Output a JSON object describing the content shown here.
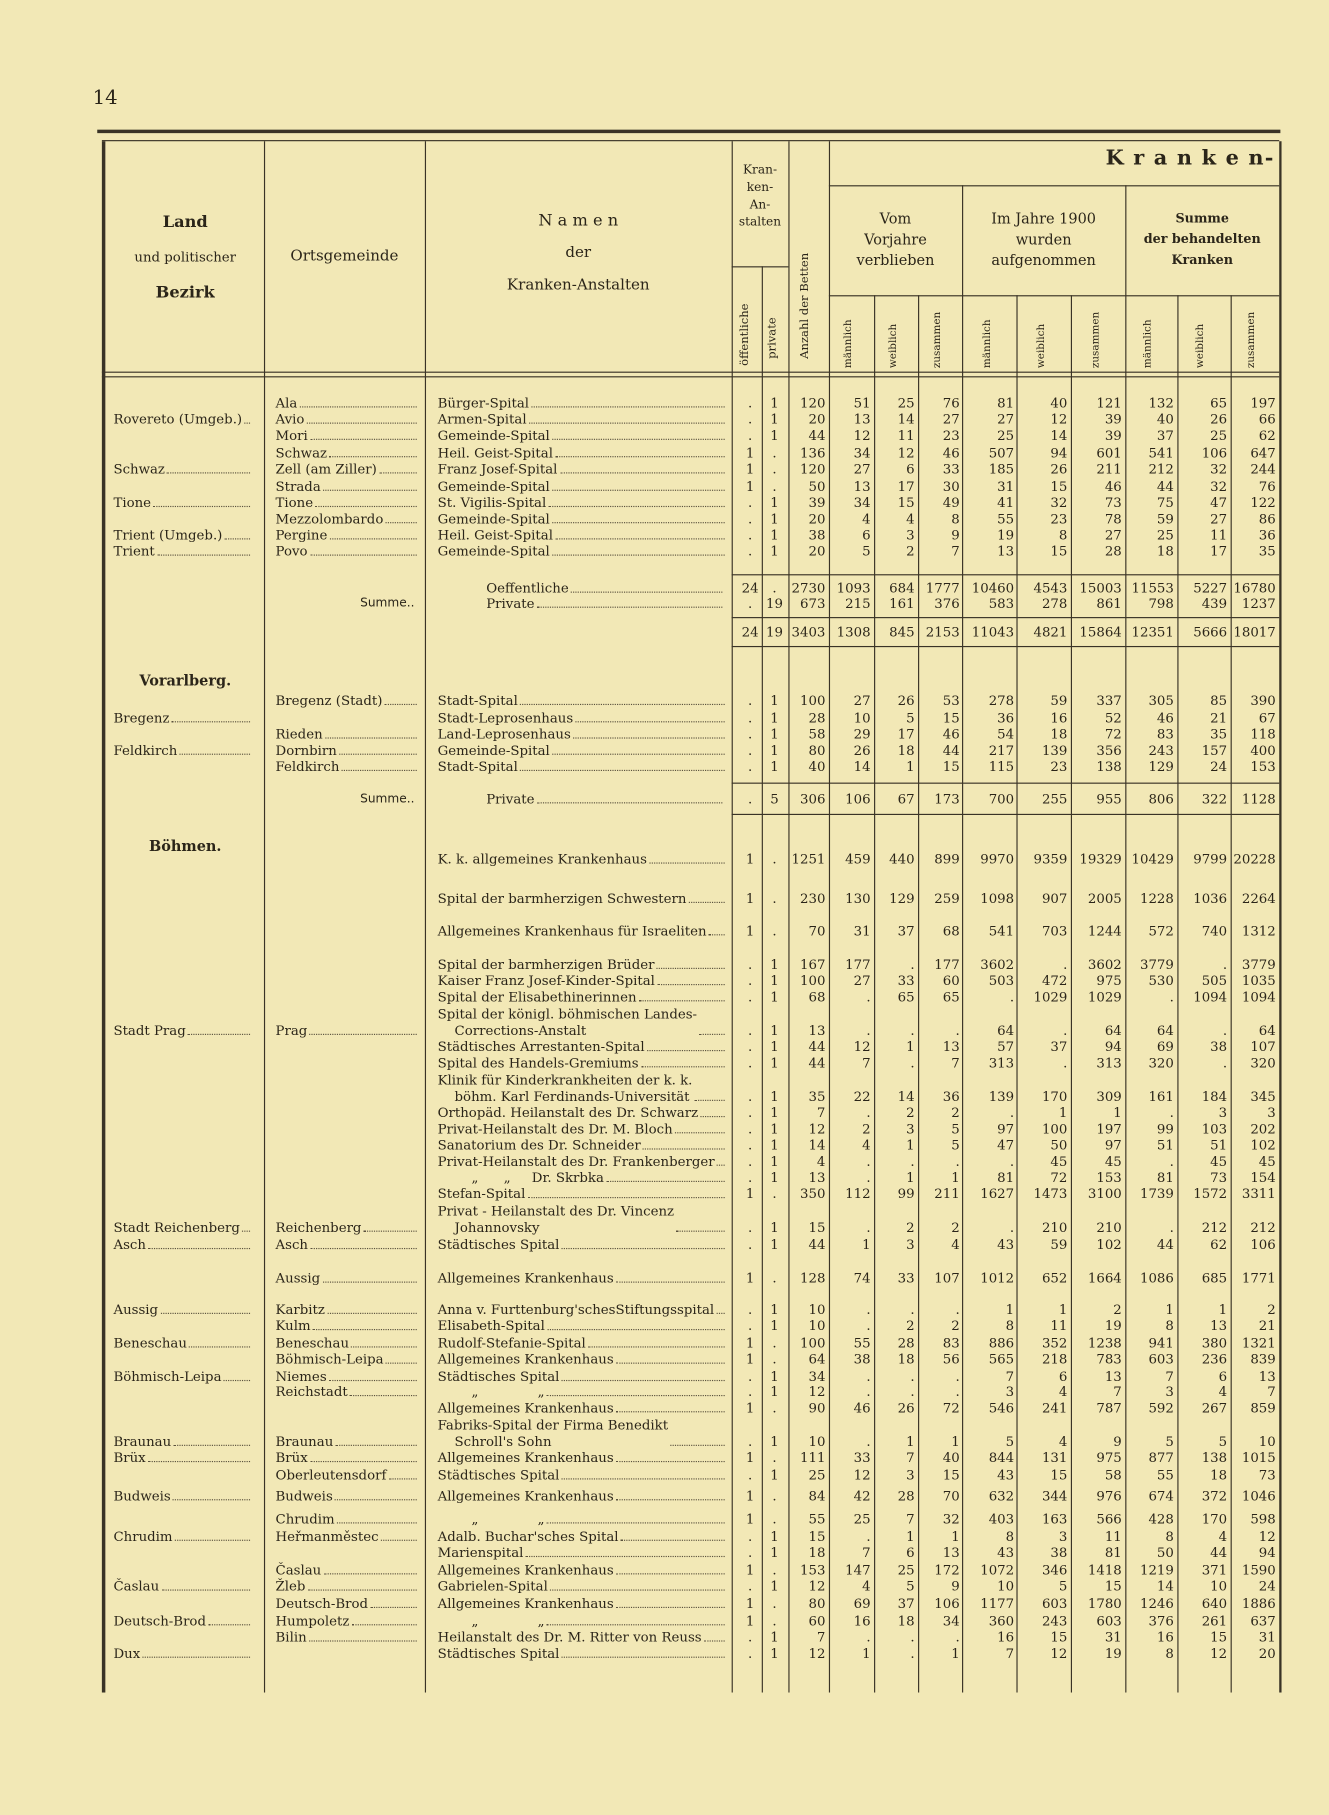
{
  "header": {
    "page": "14",
    "land": [
      "Land",
      "und politischer",
      "Bezirk"
    ],
    "ort": "Ortsgemeinde",
    "namen": [
      "N a m e n",
      "der",
      "Kranken-Anstalten"
    ],
    "anstalten": [
      "Kran-",
      "ken-",
      "An-",
      "stalten"
    ],
    "oeff": "öffentliche",
    "priv": "private",
    "betten": "Anzahl der Betten",
    "kranken": "K r a n k e n-",
    "vorjahre": [
      "Vom",
      "Vorjahre",
      "verblieben"
    ],
    "jahre": [
      "Im Jahre 1900",
      "wurden",
      "aufgenommen"
    ],
    "summe": [
      "Summe",
      "der behandelten",
      "Kranken"
    ],
    "sub": [
      "männlich",
      "weiblich",
      "zusammen"
    ]
  },
  "rows": [
    {
      "ort": "Ala",
      "name": "Bürger-Spital",
      "cells": [
        ".",
        1,
        120,
        51,
        25,
        76,
        81,
        40,
        121,
        132,
        65,
        197
      ]
    },
    {
      "bezirk": "Rovereto (Umgeb.)",
      "ort": "Avio",
      "name": "Armen-Spital",
      "cells": [
        ".",
        1,
        20,
        13,
        14,
        27,
        27,
        12,
        39,
        40,
        26,
        66
      ]
    },
    {
      "ort": "Mori",
      "name": "Gemeinde-Spital",
      "cells": [
        ".",
        1,
        44,
        12,
        11,
        23,
        25,
        14,
        39,
        37,
        25,
        62
      ]
    },
    {
      "ort": "Schwaz",
      "name": "Heil. Geist-Spital",
      "cells": [
        1,
        ".",
        136,
        34,
        12,
        46,
        507,
        94,
        601,
        541,
        106,
        647
      ]
    },
    {
      "bezirk": "Schwaz",
      "ort": "Zell (am Ziller)",
      "name": "Franz Josef-Spital",
      "cells": [
        1,
        ".",
        120,
        27,
        6,
        33,
        185,
        26,
        211,
        212,
        32,
        244
      ]
    },
    {
      "ort": "Strada",
      "name": "Gemeinde-Spital",
      "cells": [
        1,
        ".",
        50,
        13,
        17,
        30,
        31,
        15,
        46,
        44,
        32,
        76
      ]
    },
    {
      "bezirk": "Tione",
      "ort": "Tione",
      "name": "St. Vigilis-Spital",
      "cells": [
        ".",
        1,
        39,
        34,
        15,
        49,
        41,
        32,
        73,
        75,
        47,
        122
      ]
    },
    {
      "ort": "Mezzolombardo",
      "name": "Gemeinde-Spital",
      "cells": [
        ".",
        1,
        20,
        4,
        4,
        8,
        55,
        23,
        78,
        59,
        27,
        86
      ]
    },
    {
      "bezirk": "Trient (Umgeb.)",
      "ort": "Pergine",
      "name": "Heil. Geist-Spital",
      "cells": [
        ".",
        1,
        38,
        6,
        3,
        9,
        19,
        8,
        27,
        25,
        11,
        36
      ]
    },
    {
      "bezirk": "Trient",
      "ort": "Povo",
      "name": "Gemeinde-Spital",
      "cells": [
        ".",
        1,
        20,
        5,
        2,
        7,
        13,
        15,
        28,
        18,
        17,
        35
      ]
    },
    {
      "name": "Oeffentliche",
      "cells": [
        24,
        ".",
        2730,
        1093,
        684,
        1777,
        10460,
        4543,
        15003,
        11553,
        5227,
        16780
      ]
    },
    {
      "label": "Summe..",
      "name": "Private",
      "cells": [
        ".",
        19,
        673,
        215,
        161,
        376,
        583,
        278,
        861,
        798,
        439,
        1237
      ]
    },
    {
      "cells": [
        24,
        19,
        3403,
        1308,
        845,
        2153,
        11043,
        4821,
        15864,
        12351,
        5666,
        18017
      ]
    },
    {
      "land": "Vorarlberg."
    },
    {
      "ort": "Bregenz (Stadt)",
      "name": "Stadt-Spital",
      "cells": [
        ".",
        1,
        100,
        27,
        26,
        53,
        278,
        59,
        337,
        305,
        85,
        390
      ]
    },
    {
      "bezirk": "Bregenz",
      "name": "Stadt-Leprosenhaus",
      "cells": [
        ".",
        1,
        28,
        10,
        5,
        15,
        36,
        16,
        52,
        46,
        21,
        67
      ]
    },
    {
      "ort": "Rieden",
      "name": "Land-Leprosenhaus",
      "cells": [
        ".",
        1,
        58,
        29,
        17,
        46,
        54,
        18,
        72,
        83,
        35,
        118
      ]
    },
    {
      "bezirk": "Feldkirch",
      "ort": "Dornbirn",
      "name": "Gemeinde-Spital",
      "cells": [
        ".",
        1,
        80,
        26,
        18,
        44,
        217,
        139,
        356,
        243,
        157,
        400
      ]
    },
    {
      "ort": "Feldkirch",
      "name": "Stadt-Spital",
      "cells": [
        ".",
        1,
        40,
        14,
        1,
        15,
        115,
        23,
        138,
        129,
        24,
        153
      ]
    },
    {
      "label": "Summe..",
      "name": "Private",
      "cells": [
        ".",
        5,
        306,
        106,
        67,
        173,
        700,
        255,
        955,
        806,
        322,
        1128
      ]
    },
    {
      "land": "Böhmen."
    },
    {
      "name": "K. k. allgemeines Krankenhaus",
      "cells": [
        1,
        ".",
        1251,
        459,
        440,
        899,
        9970,
        9359,
        19329,
        10429,
        9799,
        20228
      ]
    },
    {
      "name": "Spital der barmherzigen Schwestern",
      "cells": [
        1,
        ".",
        230,
        130,
        129,
        259,
        1098,
        907,
        2005,
        1228,
        1036,
        2264
      ]
    },
    {
      "name": "Allgemeines Krankenhaus für Israeliten",
      "cells": [
        1,
        ".",
        70,
        31,
        37,
        68,
        541,
        703,
        1244,
        572,
        740,
        1312
      ]
    },
    {
      "name": "Spital der barmherzigen Brüder",
      "cells": [
        ".",
        1,
        167,
        177,
        ".",
        177,
        3602,
        ".",
        3602,
        3779,
        ".",
        3779
      ]
    },
    {
      "name": "Kaiser Franz Josef-Kinder-Spital",
      "cells": [
        ".",
        1,
        100,
        27,
        33,
        60,
        503,
        472,
        975,
        530,
        505,
        1035
      ]
    },
    {
      "name": "Spital der Elisabethinerinnen",
      "cells": [
        ".",
        1,
        68,
        ".",
        65,
        65,
        ".",
        1029,
        1029,
        ".",
        1094,
        1094
      ]
    },
    {
      "bezirk": "Stadt Prag",
      "ort": "Prag",
      "name": "Spital der königl. böhmischen Landes-\n    Corrections-Anstalt",
      "cells": [
        ".",
        1,
        13,
        ".",
        ".",
        ".",
        64,
        ".",
        64,
        64,
        ".",
        64
      ]
    },
    {
      "name": "Städtisches Arrestanten-Spital",
      "cells": [
        ".",
        1,
        44,
        12,
        1,
        13,
        57,
        37,
        94,
        69,
        38,
        107
      ]
    },
    {
      "name": "Spital des Handels-Gremiums",
      "cells": [
        ".",
        1,
        44,
        7,
        ".",
        7,
        313,
        ".",
        313,
        320,
        ".",
        320
      ]
    },
    {
      "name": "Klinik für Kinderkrankheiten der k. k.\n    böhm. Karl Ferdinands-Universität",
      "cells": [
        ".",
        1,
        35,
        22,
        14,
        36,
        139,
        170,
        309,
        161,
        184,
        345
      ]
    },
    {
      "name": "Orthopäd. Heilanstalt des Dr. Schwarz",
      "cells": [
        ".",
        1,
        7,
        ".",
        2,
        2,
        ".",
        1,
        1,
        ".",
        3,
        3
      ]
    },
    {
      "name": "Privat-Heilanstalt des Dr. M. Bloch",
      "cells": [
        ".",
        1,
        12,
        2,
        3,
        5,
        97,
        100,
        197,
        99,
        103,
        202
      ]
    },
    {
      "name": "Sanatorium des Dr. Schneider",
      "cells": [
        ".",
        1,
        14,
        4,
        1,
        5,
        47,
        50,
        97,
        51,
        51,
        102
      ]
    },
    {
      "name": "Privat-Heilanstalt des Dr. Frankenberger",
      "cells": [
        ".",
        1,
        4,
        ".",
        ".",
        ".",
        ".",
        45,
        45,
        ".",
        45,
        45
      ]
    },
    {
      "name": "        „      „     Dr. Skrbka",
      "cells": [
        ".",
        1,
        13,
        ".",
        1,
        1,
        81,
        72,
        153,
        81,
        73,
        154
      ]
    },
    {
      "name": "Stefan-Spital",
      "cells": [
        1,
        ".",
        350,
        112,
        99,
        211,
        1627,
        1473,
        3100,
        1739,
        1572,
        3311
      ]
    },
    {
      "bezirk": "Stadt Reichenberg",
      "ort": "Reichenberg",
      "name": "Privat - Heilanstalt des Dr. Vincenz\n    Johannovsky",
      "cells": [
        ".",
        1,
        15,
        ".",
        2,
        2,
        ".",
        210,
        210,
        ".",
        212,
        212
      ]
    },
    {
      "bezirk": "Asch",
      "ort": "Asch",
      "name": "Städtisches Spital",
      "cells": [
        ".",
        1,
        44,
        1,
        3,
        4,
        43,
        59,
        102,
        44,
        62,
        106
      ]
    },
    {
      "ort": "Aussig",
      "name": "Allgemeines Krankenhaus",
      "cells": [
        1,
        ".",
        128,
        74,
        33,
        107,
        1012,
        652,
        1664,
        1086,
        685,
        1771
      ]
    },
    {
      "bezirk": "Aussig",
      "ort": "Karbitz",
      "name": "Anna v. Furttenburg'schesStiftungsspital",
      "cells": [
        ".",
        1,
        10,
        ".",
        ".",
        ".",
        1,
        1,
        2,
        1,
        1,
        2
      ]
    },
    {
      "ort": "Kulm",
      "name": "Elisabeth-Spital",
      "cells": [
        ".",
        1,
        10,
        ".",
        2,
        2,
        8,
        11,
        19,
        8,
        13,
        21
      ]
    },
    {
      "bezirk": "Beneschau",
      "ort": "Beneschau",
      "name": "Rudolf-Stefanie-Spital",
      "cells": [
        1,
        ".",
        100,
        55,
        28,
        83,
        886,
        352,
        1238,
        941,
        380,
        1321
      ]
    },
    {
      "ort": "Böhmisch-Leipa",
      "name": "Allgemeines Krankenhaus",
      "cells": [
        1,
        ".",
        64,
        38,
        18,
        56,
        565,
        218,
        783,
        603,
        236,
        839
      ]
    },
    {
      "bezirk": "Böhmisch-Leipa",
      "ort": "Niemes",
      "name": "Städtisches Spital",
      "cells": [
        ".",
        1,
        34,
        ".",
        ".",
        ".",
        7,
        6,
        13,
        7,
        6,
        13
      ]
    },
    {
      "ort": "Reichstadt",
      "name": "        „              „",
      "cells": [
        ".",
        1,
        12,
        ".",
        ".",
        ".",
        3,
        4,
        7,
        3,
        4,
        7
      ]
    },
    {
      "name": "Allgemeines Krankenhaus",
      "cells": [
        1,
        ".",
        90,
        46,
        26,
        72,
        546,
        241,
        787,
        592,
        267,
        859
      ]
    },
    {
      "bezirk": "Braunau",
      "ort": "Braunau",
      "name": "Fabriks-Spital der Firma Benedikt\n    Schroll's Sohn",
      "cells": [
        ".",
        1,
        10,
        ".",
        1,
        1,
        5,
        4,
        9,
        5,
        5,
        10
      ]
    },
    {
      "bezirk": "Brüx",
      "ort": "Brüx",
      "name": "Allgemeines Krankenhaus",
      "cells": [
        1,
        ".",
        111,
        33,
        7,
        40,
        844,
        131,
        975,
        877,
        138,
        1015
      ]
    },
    {
      "ort": "Oberleutensdorf",
      "name": "Städtisches Spital",
      "cells": [
        ".",
        1,
        25,
        12,
        3,
        15,
        43,
        15,
        58,
        55,
        18,
        73
      ]
    },
    {
      "bezirk": "Budweis",
      "ort": "Budweis",
      "name": "Allgemeines Krankenhaus",
      "cells": [
        1,
        ".",
        84,
        42,
        28,
        70,
        632,
        344,
        976,
        674,
        372,
        1046
      ]
    },
    {
      "ort": "Chrudim",
      "name": "        „              „",
      "cells": [
        1,
        ".",
        55,
        25,
        7,
        32,
        403,
        163,
        566,
        428,
        170,
        598
      ]
    },
    {
      "bezirk": "Chrudim",
      "ort": "Heřmanměstec",
      "name": "Adalb. Buchar'sches Spital",
      "cells": [
        ".",
        1,
        15,
        ".",
        1,
        1,
        8,
        3,
        11,
        8,
        4,
        12
      ]
    },
    {
      "name": "Marienspital",
      "cells": [
        ".",
        1,
        18,
        7,
        6,
        13,
        43,
        38,
        81,
        50,
        44,
        94
      ]
    },
    {
      "ort": "Časlau",
      "name": "Allgemeines Krankenhaus",
      "cells": [
        1,
        ".",
        153,
        147,
        25,
        172,
        1072,
        346,
        1418,
        1219,
        371,
        1590
      ]
    },
    {
      "bezirk": "Časlau",
      "ort": "Žleb",
      "name": "Gabrielen-Spital",
      "cells": [
        ".",
        1,
        12,
        4,
        5,
        9,
        10,
        5,
        15,
        14,
        10,
        24
      ]
    },
    {
      "ort": "Deutsch-Brod",
      "name": "Allgemeines Krankenhaus",
      "cells": [
        1,
        ".",
        80,
        69,
        37,
        106,
        1177,
        603,
        1780,
        1246,
        640,
        1886
      ]
    },
    {
      "bezirk": "Deutsch-Brod",
      "ort": "Humpoletz",
      "name": "        „              „",
      "cells": [
        1,
        ".",
        60,
        16,
        18,
        34,
        360,
        243,
        603,
        376,
        261,
        637
      ]
    },
    {
      "ort": "Bilin",
      "name": "Heilanstalt des Dr. M. Ritter von Reuss",
      "cells": [
        ".",
        1,
        7,
        ".",
        ".",
        ".",
        16,
        15,
        31,
        16,
        15,
        31
      ]
    },
    {
      "bezirk": "Dux",
      "name": "Städtisches Spital",
      "cells": [
        ".",
        1,
        12,
        1,
        ".",
        1,
        7,
        12,
        19,
        8,
        12,
        20
      ]
    }
  ]
}
